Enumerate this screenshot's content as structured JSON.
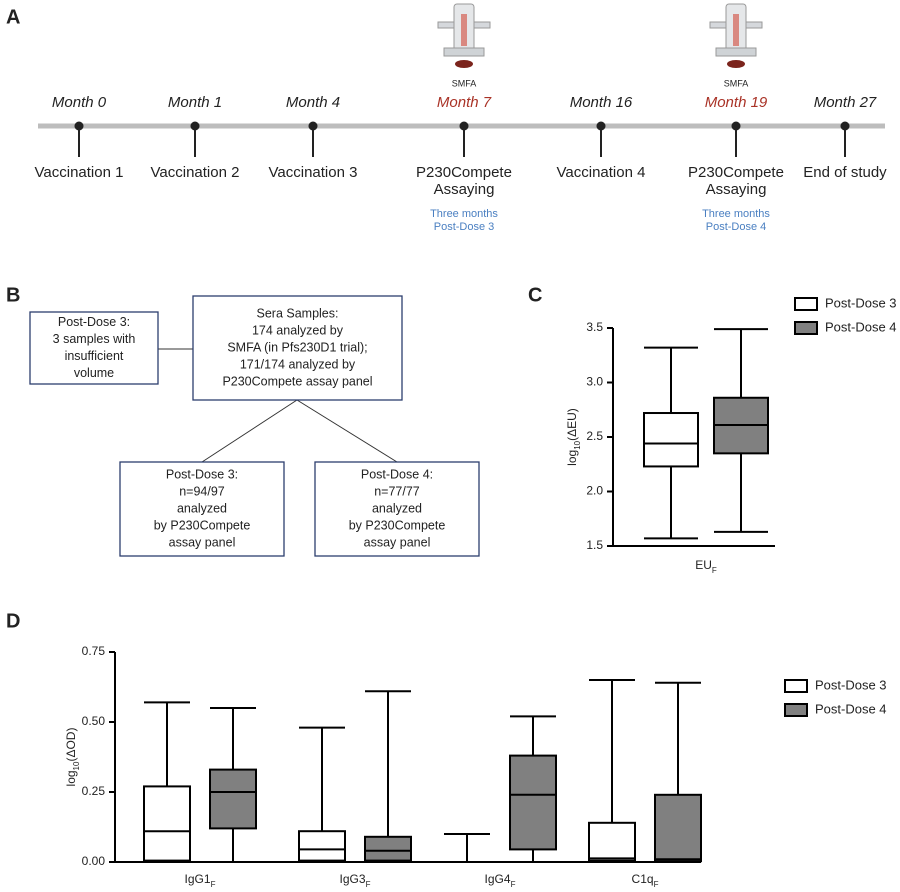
{
  "panel_labels": [
    "A",
    "B",
    "C",
    "D"
  ],
  "timeline": {
    "events": [
      {
        "month": "Month 0",
        "color": "#222222",
        "label": [
          "Vaccination 1"
        ]
      },
      {
        "month": "Month 1",
        "color": "#222222",
        "label": [
          "Vaccination 2"
        ]
      },
      {
        "month": "Month 4",
        "color": "#222222",
        "label": [
          "Vaccination 3"
        ]
      },
      {
        "month": "Month 7",
        "color": "#a93226",
        "label": [
          "P230Compete",
          "Assaying"
        ],
        "note": [
          "Three months",
          "Post-Dose 3"
        ],
        "icon": "SMFA"
      },
      {
        "month": "Month 16",
        "color": "#222222",
        "label": [
          "Vaccination 4"
        ]
      },
      {
        "month": "Month 19",
        "color": "#a93226",
        "label": [
          "P230Compete",
          "Assaying"
        ],
        "note": [
          "Three months",
          "Post-Dose 4"
        ],
        "icon": "SMFA"
      },
      {
        "month": "Month 27",
        "color": "#222222",
        "label": [
          "End of study"
        ]
      }
    ]
  },
  "flow": {
    "side": [
      "Post-Dose 3:",
      "3 samples with",
      "insufficient",
      "volume"
    ],
    "center": [
      "Sera Samples:",
      "174 analyzed by",
      "SMFA (in Pfs230D1 trial);",
      "171/174 analyzed by",
      "P230Compete assay panel"
    ],
    "left": [
      "Post-Dose 3:",
      "n=94/97",
      "analyzed",
      "by P230Compete",
      "assay panel"
    ],
    "right": [
      "Post-Dose 4:",
      "n=77/77",
      "analyzed",
      "by P230Compete",
      "assay panel"
    ]
  },
  "chart_data": [
    {
      "type": "box",
      "y_label": [
        "log",
        "10",
        "(ΔEU)"
      ],
      "categories": [
        [
          "EU",
          "F"
        ]
      ],
      "ylim": [
        1.5,
        3.5
      ],
      "yticks": [
        1.5,
        {
          "value": 2,
          "label": "2.0"
        },
        2.5,
        {
          "value": 3,
          "label": "3.0"
        },
        3.5
      ],
      "series": [
        {
          "name": "Post-Dose 3",
          "color": "#ffffff",
          "min": [
            1.57
          ],
          "q1": [
            2.23
          ],
          "median": [
            2.44
          ],
          "q3": [
            2.72
          ],
          "max": [
            3.32
          ]
        },
        {
          "name": "Post-Dose 4",
          "color": "#808080",
          "min": [
            1.63
          ],
          "q1": [
            2.35
          ],
          "median": [
            2.61
          ],
          "q3": [
            2.86
          ],
          "max": [
            3.49
          ]
        }
      ]
    },
    {
      "type": "box",
      "y_label": [
        "log",
        "10",
        "(ΔOD)"
      ],
      "categories": [
        [
          "IgG1",
          "F"
        ],
        [
          "IgG3",
          "F"
        ],
        [
          "IgG4",
          "F"
        ],
        [
          "C1q",
          "F"
        ]
      ],
      "ylim": [
        0,
        0.75
      ],
      "yticks": [
        {
          "value": 0,
          "label": "0.00"
        },
        0.25,
        {
          "value": 0.5,
          "label": "0.50"
        },
        0.75
      ],
      "series": [
        {
          "name": "Post-Dose 3",
          "color": "#ffffff",
          "min": [
            0,
            0,
            0,
            0
          ],
          "q1": [
            0.005,
            0.005,
            0,
            0.005
          ],
          "median": [
            0.11,
            0.045,
            0,
            0.013
          ],
          "q3": [
            0.27,
            0.11,
            0,
            0.14
          ],
          "max": [
            0.57,
            0.48,
            0.1,
            0.65
          ]
        },
        {
          "name": "Post-Dose 4",
          "color": "#808080",
          "min": [
            0,
            0,
            0,
            0
          ],
          "q1": [
            0.12,
            0.005,
            0.045,
            0.003
          ],
          "median": [
            0.25,
            0.04,
            0.24,
            0.01
          ],
          "q3": [
            0.33,
            0.09,
            0.38,
            0.24
          ],
          "max": [
            0.55,
            0.61,
            0.52,
            0.64
          ]
        }
      ]
    }
  ]
}
